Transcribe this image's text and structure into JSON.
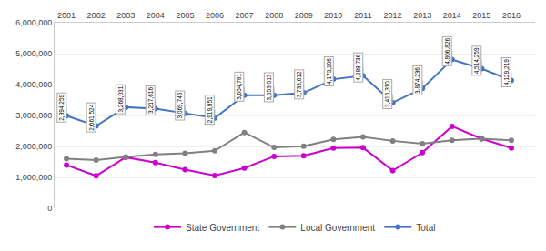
{
  "chart_data": {
    "type": "line",
    "x": [
      2001,
      2002,
      2003,
      2004,
      2005,
      2006,
      2007,
      2008,
      2009,
      2010,
      2011,
      2012,
      2013,
      2014,
      2015,
      2016
    ],
    "series": [
      {
        "name": "State Government",
        "color": "#CC00CC",
        "marker": "circle",
        "line_style": "solid",
        "values": [
          1400000,
          1050000,
          1650000,
          1480000,
          1250000,
          1060000,
          1300000,
          1680000,
          1700000,
          1950000,
          1960000,
          1220000,
          1800000,
          2650000,
          2250000,
          1950000
        ]
      },
      {
        "name": "Local Government",
        "color": "#808080",
        "marker": "circle",
        "line_style": "solid",
        "values": [
          1600000,
          1560000,
          1660000,
          1740000,
          1780000,
          1860000,
          2450000,
          1970000,
          2010000,
          2230000,
          2310000,
          2180000,
          2090000,
          2200000,
          2250000,
          2200000
        ]
      },
      {
        "name": "Total",
        "color": "#4472C4",
        "marker": "circle",
        "line_style": "solid",
        "data_labels": true,
        "values": [
          2994259,
          2661524,
          3268031,
          3217616,
          3069745,
          2919951,
          3654781,
          3653013,
          3733612,
          4173106,
          4288736,
          3415310,
          3874236,
          4806826,
          4514259,
          4129219
        ],
        "value_labels": [
          "2,994,259",
          "2,661,524",
          "3,268,031",
          "3,217,616",
          "3,069,745",
          "2,919,951",
          "3,654,781",
          "3,653,013",
          "3,733,612",
          "4,173,106",
          "4,288,736",
          "3,415,310",
          "3,874,236",
          "4,806,826",
          "4,514,259",
          "4,129,219"
        ]
      }
    ],
    "xlim": [
      2000.6,
      2016.8
    ],
    "xticks": [
      2001,
      2002,
      2003,
      2004,
      2005,
      2006,
      2007,
      2008,
      2009,
      2010,
      2011,
      2012,
      2013,
      2014,
      2015,
      2016
    ],
    "ylim": [
      0,
      6000000
    ],
    "yticks": [
      0,
      {
        "value": 1000000,
        "label": "1,000,000"
      },
      {
        "value": 2000000,
        "label": "2,000,000"
      },
      {
        "value": 3000000,
        "label": "3,000,000"
      },
      {
        "value": 4000000,
        "label": "4,000,000"
      },
      {
        "value": 5000000,
        "label": "5,000,000"
      },
      {
        "value": 6000000,
        "label": "6,000,000"
      }
    ],
    "grid": true
  }
}
